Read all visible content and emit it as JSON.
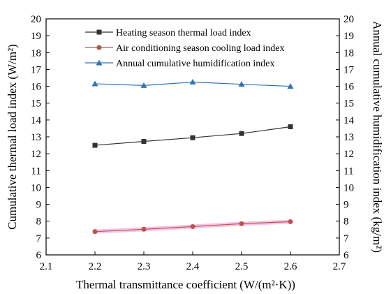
{
  "chart_data": {
    "type": "line",
    "xlabel": "Thermal transmittance coefficient  (W/(m²·K))",
    "ylabel_left": "Cumulative thermal load index (W/m²)",
    "ylabel_right": "Annual cumulative humidification index (kg/m²)",
    "xlim": [
      2.1,
      2.7
    ],
    "ylim": [
      6,
      20
    ],
    "ylim_right": [
      6,
      20
    ],
    "x_ticks": [
      "2.1",
      "2.2",
      "2.3",
      "2.4",
      "2.5",
      "2.6",
      "2.7"
    ],
    "y_ticks": [
      "6",
      "7",
      "8",
      "9",
      "10",
      "11",
      "12",
      "13",
      "14",
      "15",
      "16",
      "17",
      "18",
      "19",
      "20"
    ],
    "grid": false,
    "legend_position": "top-center",
    "series": [
      {
        "name": "Heating season thermal load index",
        "color": "#333333",
        "marker": "square",
        "x": [
          2.2,
          2.3,
          2.4,
          2.5,
          2.6
        ],
        "y": [
          12.5,
          12.73,
          12.95,
          13.2,
          13.6
        ]
      },
      {
        "name": "Air conditioning season cooling load index",
        "color": "#c0504d",
        "marker": "circle",
        "x": [
          2.2,
          2.3,
          2.4,
          2.5,
          2.6
        ],
        "y": [
          7.38,
          7.52,
          7.68,
          7.85,
          7.97
        ]
      },
      {
        "name": "Annual cumulative humidification index",
        "color": "#2e75b6",
        "marker": "triangle",
        "x": [
          2.2,
          2.3,
          2.4,
          2.5,
          2.6
        ],
        "y": [
          16.15,
          16.05,
          16.25,
          16.12,
          16.0
        ]
      }
    ]
  }
}
